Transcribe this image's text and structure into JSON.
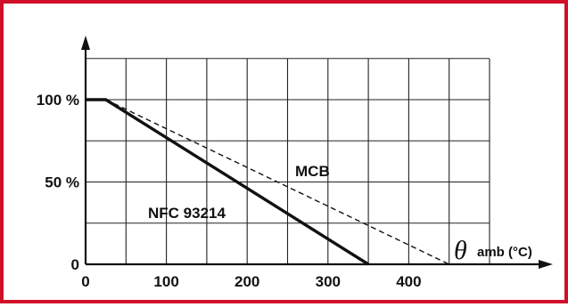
{
  "chart_data": {
    "type": "line",
    "x": [
      0,
      100,
      200,
      300,
      400
    ],
    "x_tick_labels": [
      "0",
      "100",
      "200",
      "300",
      "400"
    ],
    "y_tick_labels": [
      "0",
      "50 %",
      "100 %"
    ],
    "xlim": [
      0,
      500
    ],
    "ylim": [
      0,
      100
    ],
    "grid": true,
    "xlabel_symbol": "θ",
    "xlabel_text": "amb (°C)",
    "series": [
      {
        "name": "NFC 93214",
        "style": "solid",
        "points": [
          [
            0,
            100
          ],
          [
            25,
            100
          ],
          [
            350,
            0
          ]
        ]
      },
      {
        "name": "MCB",
        "style": "dashed",
        "points": [
          [
            25,
            100
          ],
          [
            450,
            0
          ]
        ]
      }
    ],
    "colors": {
      "frame": "#d10f2a",
      "ink": "#111111",
      "grid": "#222222"
    }
  }
}
